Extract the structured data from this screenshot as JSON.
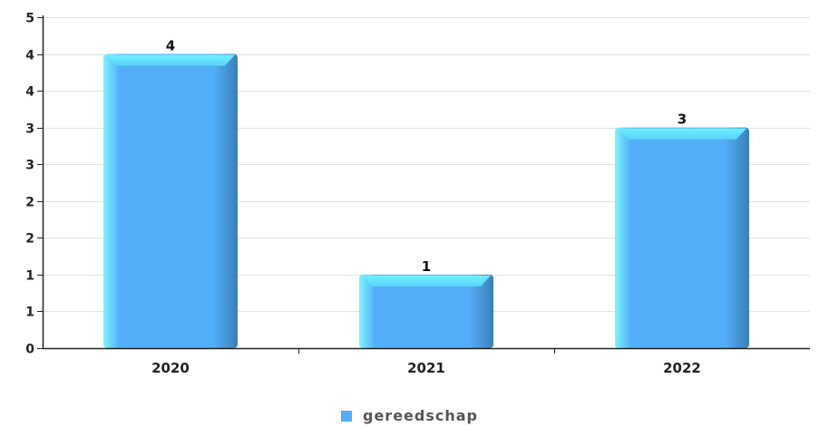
{
  "chart_data": {
    "type": "bar",
    "categories": [
      "2020",
      "2021",
      "2022"
    ],
    "series": [
      {
        "name": "gereedschap",
        "values": [
          4,
          1,
          3
        ]
      }
    ],
    "data_labels": [
      "4",
      "1",
      "3"
    ],
    "y_ticks": [
      {
        "value": 0,
        "label": "0"
      },
      {
        "value": 0.5,
        "label": "1"
      },
      {
        "value": 1,
        "label": "1"
      },
      {
        "value": 1.5,
        "label": "2"
      },
      {
        "value": 2,
        "label": "2"
      },
      {
        "value": 2.5,
        "label": "3"
      },
      {
        "value": 3,
        "label": "3"
      },
      {
        "value": 3.5,
        "label": "4"
      },
      {
        "value": 4,
        "label": "4"
      },
      {
        "value": 4.5,
        "label": "5"
      }
    ],
    "ylim": [
      0,
      4.5
    ],
    "grid": true,
    "legend_position": "bottom-center",
    "colors": {
      "bar": "#53aef7",
      "bar_dark": "#3a7fb8",
      "bar_light": "#6ff1ff",
      "grid": "#e2e2e2",
      "axis": "#222222",
      "legend_swatch": "#53aef7"
    }
  }
}
